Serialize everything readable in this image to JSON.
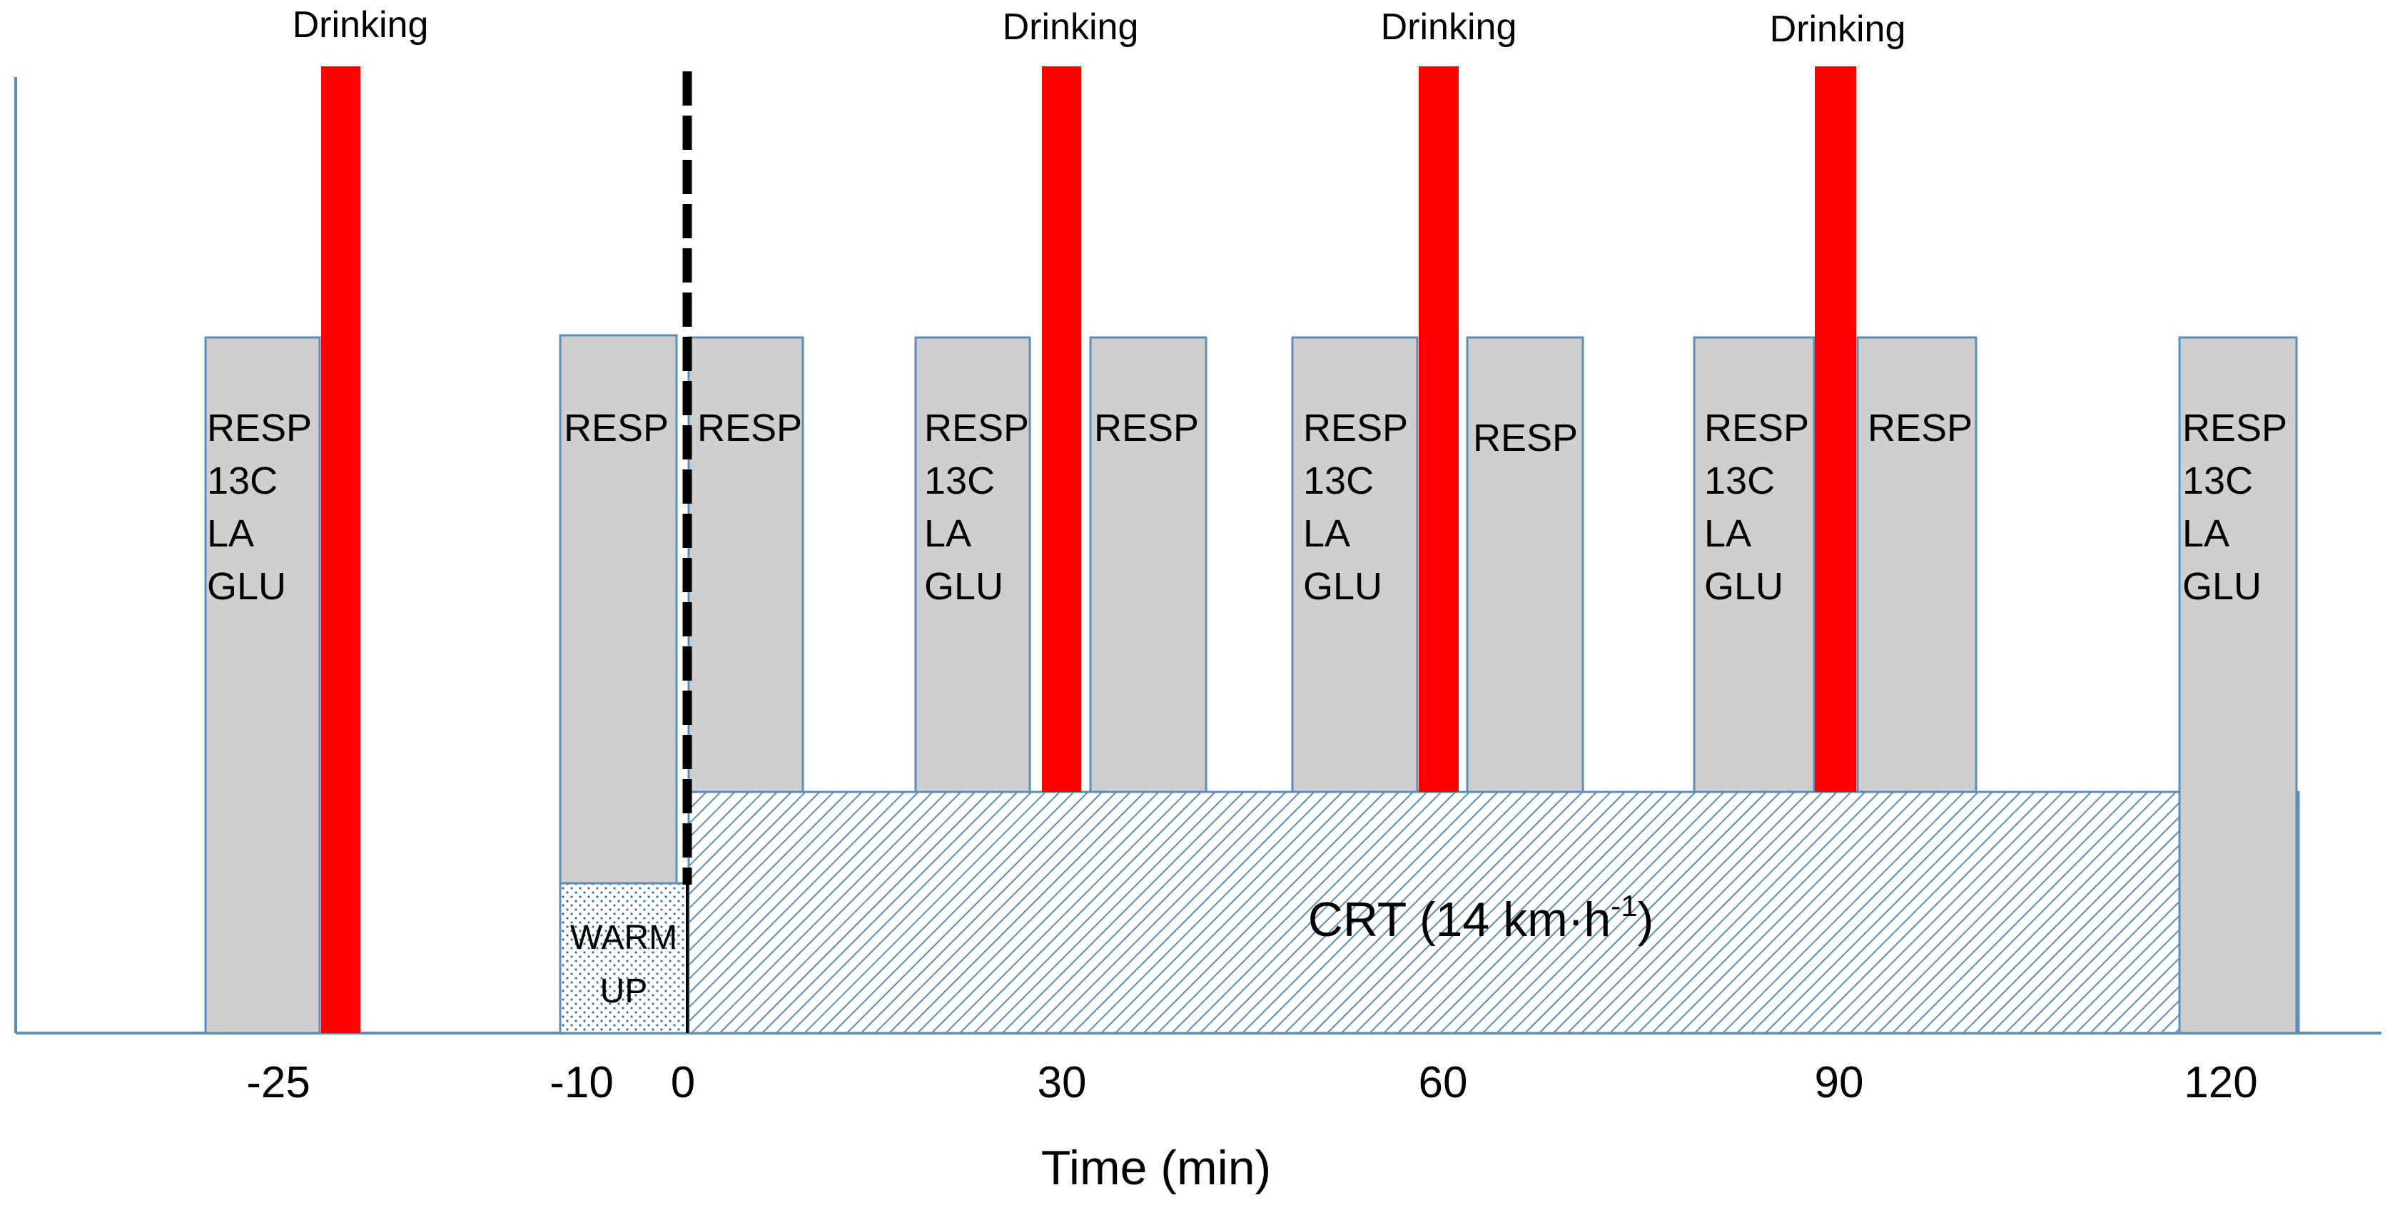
{
  "title": "",
  "axis": {
    "xlabel": "Time (min)",
    "ticks": [
      "-25",
      "-10",
      "0",
      "30",
      "60",
      "90",
      "120"
    ]
  },
  "drinking": {
    "label": "Drinking",
    "count": 4
  },
  "sampling_boxes": [
    {
      "id": "box-1",
      "lines": [
        "RESP",
        "13C",
        "LA",
        "GLU"
      ]
    },
    {
      "id": "box-2",
      "lines": [
        "RESP"
      ]
    },
    {
      "id": "box-3",
      "lines": [
        "RESP"
      ]
    },
    {
      "id": "box-4",
      "lines": [
        "RESP",
        "13C",
        "LA",
        "GLU"
      ]
    },
    {
      "id": "box-5",
      "lines": [
        "RESP"
      ]
    },
    {
      "id": "box-6",
      "lines": [
        "RESP",
        "13C",
        "LA",
        "GLU"
      ]
    },
    {
      "id": "box-7",
      "lines": [
        "RESP"
      ]
    },
    {
      "id": "box-8",
      "lines": [
        "RESP",
        "13C",
        "LA",
        "GLU"
      ]
    },
    {
      "id": "box-9",
      "lines": [
        "RESP"
      ]
    },
    {
      "id": "box-10",
      "lines": [
        "RESP",
        "13C",
        "LA",
        "GLU"
      ]
    }
  ],
  "warmup": {
    "line1": "WARM",
    "line2": "UP"
  },
  "crt": {
    "label": "CRT (14 km·h",
    "superscript": "-1",
    "close": ")"
  },
  "colors": {
    "drink_bar": "#ff0000",
    "box_fill": "#d0cece",
    "box_border": "#5b8db8",
    "axis": "#5b8db8",
    "hatch": "#5b8db8"
  }
}
